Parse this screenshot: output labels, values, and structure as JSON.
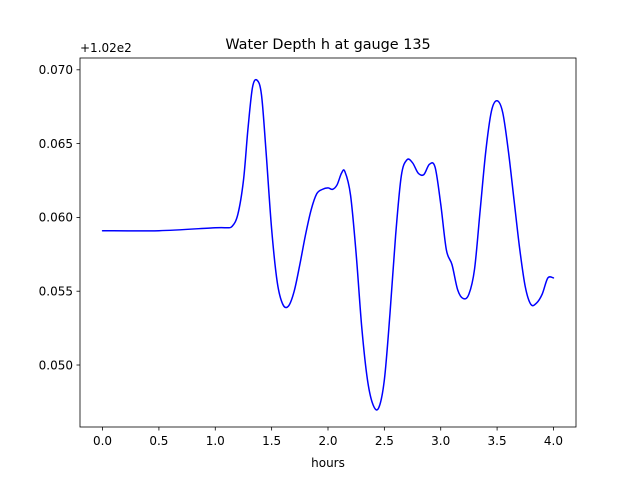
{
  "chart_data": {
    "type": "line",
    "title": "Water Depth h at gauge 135",
    "xlabel": "hours",
    "ylabel": "",
    "y_offset_label": "+1.02e2",
    "xlim": [
      -0.2,
      4.2
    ],
    "ylim": [
      0.0458,
      0.0708
    ],
    "x_ticks": [
      0.0,
      0.5,
      1.0,
      1.5,
      2.0,
      2.5,
      3.0,
      3.5,
      4.0
    ],
    "x_tick_labels": [
      "0.0",
      "0.5",
      "1.0",
      "1.5",
      "2.0",
      "2.5",
      "3.0",
      "3.5",
      "4.0"
    ],
    "y_ticks": [
      0.05,
      0.055,
      0.06,
      0.065,
      0.07
    ],
    "y_tick_labels": [
      "0.050",
      "0.055",
      "0.060",
      "0.065",
      "0.070"
    ],
    "grid": false,
    "legend": "none",
    "series": [
      {
        "color": "#0000ff",
        "x": [
          0.0,
          0.5,
          1.0,
          1.1,
          1.15,
          1.2,
          1.25,
          1.29,
          1.33,
          1.37,
          1.41,
          1.45,
          1.5,
          1.55,
          1.6,
          1.65,
          1.7,
          1.75,
          1.8,
          1.85,
          1.9,
          1.95,
          2.0,
          2.04,
          2.08,
          2.12,
          2.15,
          2.2,
          2.25,
          2.3,
          2.35,
          2.4,
          2.45,
          2.5,
          2.55,
          2.6,
          2.65,
          2.7,
          2.75,
          2.8,
          2.85,
          2.9,
          2.95,
          3.0,
          3.05,
          3.1,
          3.15,
          3.2,
          3.25,
          3.3,
          3.35,
          3.4,
          3.45,
          3.5,
          3.55,
          3.6,
          3.65,
          3.7,
          3.75,
          3.8,
          3.85,
          3.9,
          3.95,
          4.0
        ],
        "y": [
          0.0591,
          0.0591,
          0.0593,
          0.0593,
          0.0594,
          0.0602,
          0.0625,
          0.066,
          0.0688,
          0.0693,
          0.0683,
          0.0645,
          0.0592,
          0.0556,
          0.0541,
          0.054,
          0.055,
          0.0568,
          0.0588,
          0.0605,
          0.0616,
          0.0619,
          0.062,
          0.0619,
          0.0622,
          0.063,
          0.0631,
          0.0615,
          0.0575,
          0.0525,
          0.049,
          0.0473,
          0.0471,
          0.049,
          0.0535,
          0.0588,
          0.0628,
          0.0639,
          0.0637,
          0.063,
          0.0629,
          0.0636,
          0.0634,
          0.0609,
          0.0578,
          0.0568,
          0.0551,
          0.0545,
          0.0548,
          0.0565,
          0.0605,
          0.0645,
          0.0672,
          0.0679,
          0.0671,
          0.0645,
          0.0612,
          0.0579,
          0.0553,
          0.0541,
          0.0542,
          0.0548,
          0.0559,
          0.0559
        ]
      }
    ]
  }
}
